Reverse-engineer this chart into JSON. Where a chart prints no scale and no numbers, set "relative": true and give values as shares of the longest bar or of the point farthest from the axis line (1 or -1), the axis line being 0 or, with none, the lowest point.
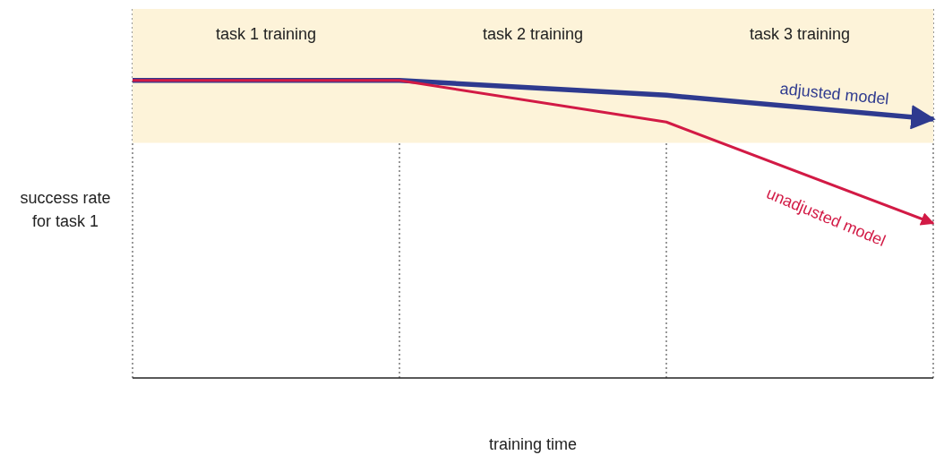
{
  "chart_data": {
    "type": "line",
    "relative": true,
    "xlabel": "training time",
    "ylabel": "success rate\nfor task 1",
    "categories": [
      null,
      null,
      null,
      null
    ],
    "grid": "x",
    "legend": false,
    "marker": "none",
    "line_style": "solid",
    "series": [
      {
        "name": "adjusted model",
        "color": "#2e3a8f",
        "values": [
          1,
          1,
          0.95,
          0.87
        ]
      },
      {
        "name": "unadjusted model",
        "color": "#d21a45",
        "values": [
          1,
          1,
          0.86,
          0.52
        ]
      }
    ],
    "bands": [
      {
        "axis": "y",
        "from": 0.79,
        "to": 1.24,
        "color": "#fdf3d9"
      }
    ],
    "annotations": [
      "task 1 training",
      "task 2 training",
      "task 3 training"
    ]
  }
}
